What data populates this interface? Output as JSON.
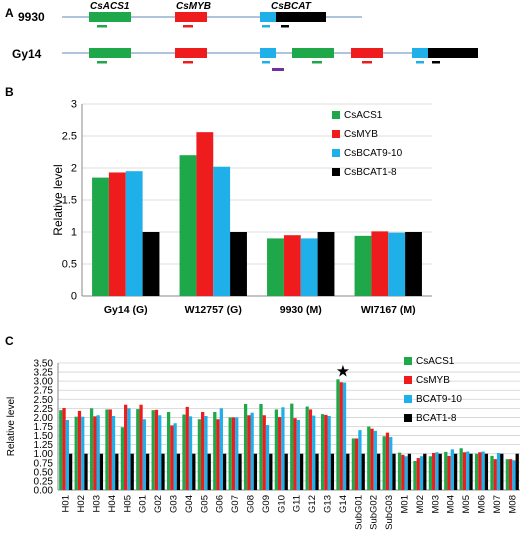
{
  "colors": {
    "ACS1": "#1ea84a",
    "MYB": "#ee1c1c",
    "BCAT9": "#1fb0ea",
    "BCAT18": "#000000",
    "purple": "#7030a0",
    "line": "#7f9fc8",
    "axis": "#888888"
  },
  "panel_a": {
    "letter": "A",
    "genes": [
      "CsACS1",
      "CsMYB",
      "CsBCAT"
    ],
    "lines": [
      "9930",
      "Gy14"
    ]
  },
  "chart_data": [
    {
      "panel": "B",
      "type": "bar",
      "categories": [
        "Gy14 (G)",
        "W12757 (G)",
        "9930 (M)",
        "WI7167 (M)"
      ],
      "ylabel": "Relative level",
      "ylim": [
        0,
        3
      ],
      "yticks": [
        0,
        0.5,
        1,
        1.5,
        2,
        2.5,
        3
      ],
      "ytick_labels": [
        "0",
        "0.5",
        "1",
        "1.5",
        "2",
        "2.5",
        "3"
      ],
      "legend_position": "top-right",
      "series": [
        {
          "name": "CsACS1",
          "color_key": "ACS1",
          "values": [
            1.85,
            2.2,
            0.9,
            0.94
          ]
        },
        {
          "name": "CsMYB",
          "color_key": "MYB",
          "values": [
            1.93,
            2.56,
            0.95,
            1.01
          ]
        },
        {
          "name": "CsBCAT9-10",
          "color_key": "BCAT9",
          "values": [
            1.95,
            2.02,
            0.9,
            0.99
          ]
        },
        {
          "name": "CsBCAT1-8",
          "color_key": "BCAT18",
          "values": [
            1.0,
            1.0,
            1.0,
            1.0
          ]
        }
      ]
    },
    {
      "panel": "C",
      "type": "bar",
      "categories": [
        "H01",
        "H02",
        "H03",
        "H04",
        "H05",
        "G01",
        "G02",
        "G03",
        "G04",
        "G05",
        "G06",
        "G07",
        "G08",
        "G09",
        "G10",
        "G11",
        "G12",
        "G13",
        "G14",
        "SubG01",
        "SubG02",
        "SubG03",
        "M01",
        "M02",
        "M03",
        "M04",
        "M05",
        "M06",
        "M07",
        "M08"
      ],
      "ylabel": "Relative level",
      "ylim": [
        0,
        3.5
      ],
      "yticks": [
        0,
        0.25,
        0.5,
        0.75,
        1,
        1.25,
        1.5,
        1.75,
        2,
        2.25,
        2.5,
        2.75,
        3,
        3.25,
        3.5
      ],
      "ytick_labels": [
        "0.00",
        "0.25",
        "0.50",
        "0.75",
        "1.00",
        "1.25",
        "1.50",
        "1.75",
        "2.00",
        "2.25",
        "2.50",
        "2.75",
        "3.00",
        "3.25",
        "3.50"
      ],
      "annotation": {
        "symbol": "★",
        "category": "G14"
      },
      "legend_position": "top-right",
      "series": [
        {
          "name": "CsACS1",
          "color_key": "ACS1",
          "values": [
            2.2,
            2.02,
            2.25,
            2.22,
            1.73,
            2.23,
            2.2,
            2.15,
            2.08,
            1.95,
            2.15,
            2.0,
            2.37,
            2.37,
            2.22,
            2.38,
            2.3,
            2.09,
            3.05,
            1.42,
            1.75,
            1.48,
            1.03,
            0.8,
            0.93,
            1.05,
            1.15,
            1.0,
            0.94,
            0.85
          ]
        },
        {
          "name": "CsMYB",
          "color_key": "MYB",
          "values": [
            2.26,
            2.18,
            2.03,
            2.22,
            2.35,
            2.35,
            2.21,
            1.78,
            2.29,
            2.15,
            1.95,
            2.0,
            2.06,
            2.06,
            2.01,
            1.98,
            2.22,
            2.07,
            2.97,
            1.42,
            1.69,
            1.58,
            0.97,
            0.88,
            1.02,
            0.94,
            1.04,
            1.04,
            0.85,
            0.85
          ]
        },
        {
          "name": "BCAT9-10",
          "color_key": "BCAT9",
          "values": [
            1.93,
            2.02,
            2.06,
            2.04,
            2.25,
            1.95,
            2.06,
            1.84,
            2.03,
            2.04,
            2.25,
            2.0,
            2.13,
            1.79,
            2.28,
            1.93,
            2.05,
            2.04,
            2.96,
            1.65,
            1.63,
            1.46,
            0.93,
            0.93,
            1.04,
            1.12,
            1.06,
            1.06,
            1.02,
            0.82
          ]
        },
        {
          "name": "BCAT1-8",
          "color_key": "BCAT18",
          "values": [
            1,
            1,
            1,
            1,
            1,
            1,
            1,
            1,
            1,
            1,
            1,
            1,
            1,
            1,
            1,
            1,
            1,
            1,
            1,
            1,
            1,
            1,
            1,
            1,
            1,
            1,
            1,
            1,
            1,
            1
          ]
        }
      ]
    }
  ]
}
